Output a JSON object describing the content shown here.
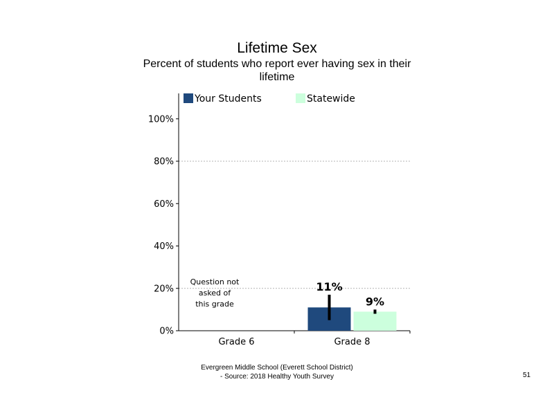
{
  "colors": {
    "your_students": "#1f497d",
    "statewide": "#ccffdd",
    "gridline": "#b3b3b3",
    "error_bar": "#000000"
  },
  "note": "Question not\nasked of\nthis grade",
  "footer": {
    "line1": "Evergreen Middle  School (Everett School District)",
    "line2": "- Source: 2018 Healthy  Youth Survey"
  },
  "page_number": "51",
  "chart_data": {
    "type": "bar",
    "title": "Lifetime Sex",
    "subtitle": "Percent of students  who report ever having sex in their lifetime",
    "categories": [
      "Grade 6",
      "Grade 8"
    ],
    "series": [
      {
        "name": "Your Students",
        "color": "#1f497d",
        "values": [
          null,
          11
        ],
        "labels": [
          "",
          "11%"
        ],
        "error_low": [
          null,
          5
        ],
        "error_high": [
          null,
          17
        ]
      },
      {
        "name": "Statewide",
        "color": "#ccffdd",
        "values": [
          null,
          9
        ],
        "labels": [
          "",
          "9%"
        ],
        "error_low": [
          null,
          8
        ],
        "error_high": [
          null,
          10
        ]
      }
    ],
    "ylim": [
      0,
      100
    ],
    "yticks": [
      0,
      20,
      40,
      60,
      80,
      100
    ],
    "ytick_labels": [
      "0%",
      "20%",
      "40%",
      "60%",
      "80%",
      "100%"
    ],
    "gridlines": [
      20,
      80
    ],
    "legend": "top",
    "xlabel": "",
    "ylabel": ""
  }
}
